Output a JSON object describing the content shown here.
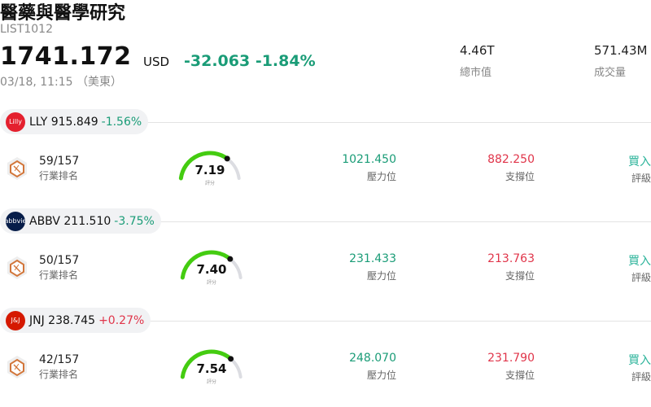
{
  "header": {
    "title": "醫藥與醫學研究",
    "code": "LIST1012",
    "price": "1741.172",
    "currency": "USD",
    "change": "-32.063 -1.84%",
    "time": "03/18, 11:15 （美東）"
  },
  "stats": [
    {
      "value": "4.46T",
      "label": "總市值"
    },
    {
      "value": "571.43M",
      "label": "成交量"
    }
  ],
  "stocks": [
    {
      "ticker_price": "LLY 915.849",
      "pct": "-1.56%",
      "direction": "down",
      "logo_text": "Lilly",
      "logo_color": "#e4202e",
      "rank": "59/157",
      "rank_label": "行業排名",
      "score": "7.19",
      "score_fraction": 0.72,
      "score_label": "評分",
      "resistance": "1021.450",
      "resistance_label": "壓力位",
      "support": "882.250",
      "support_label": "支撐位",
      "rating": "買入",
      "rating_label": "評級"
    },
    {
      "ticker_price": "ABBV 211.510",
      "pct": "-3.75%",
      "direction": "down",
      "logo_text": "abbvie",
      "logo_color": "#071d49",
      "rank": "50/157",
      "rank_label": "行業排名",
      "score": "7.40",
      "score_fraction": 0.74,
      "score_label": "評分",
      "resistance": "231.433",
      "resistance_label": "壓力位",
      "support": "213.763",
      "support_label": "支撐位",
      "rating": "買入",
      "rating_label": "評級"
    },
    {
      "ticker_price": "JNJ 238.745",
      "pct": "+0.27%",
      "direction": "up",
      "logo_text": "J&J",
      "logo_color": "#d51900",
      "rank": "42/157",
      "rank_label": "行業排名",
      "score": "7.54",
      "score_fraction": 0.75,
      "score_label": "評分",
      "resistance": "248.070",
      "resistance_label": "壓力位",
      "support": "231.790",
      "support_label": "支撐位",
      "rating": "買入",
      "rating_label": "評級"
    }
  ],
  "colors": {
    "down": "#1a9c77",
    "up": "#e0354a",
    "gauge_fill": "#44cc11",
    "gauge_track": "#dcdde2",
    "rank_icon": "#d2763a",
    "rating": "#2bb39a"
  }
}
